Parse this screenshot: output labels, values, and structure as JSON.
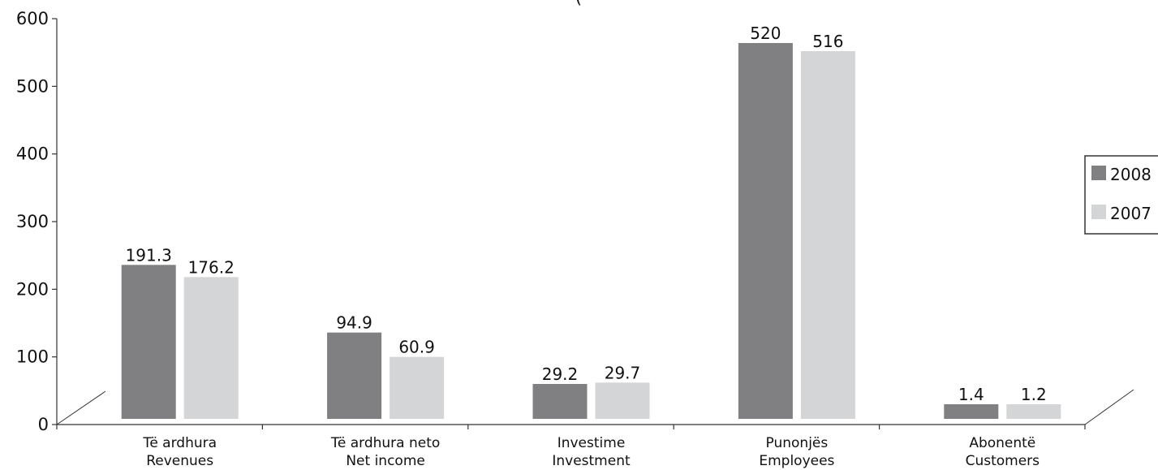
{
  "chart_data": {
    "type": "bar",
    "title_fragment": "(",
    "categories": [
      [
        "Të ardhura",
        "Revenues"
      ],
      [
        "Të ardhura neto",
        "Net income"
      ],
      [
        "Investime",
        "Investment"
      ],
      [
        "Punonjës",
        "Employees"
      ],
      [
        "Abonentë",
        "Customers"
      ]
    ],
    "series": [
      {
        "name": "2008",
        "color": "#808083",
        "values": [
          236,
          136,
          60,
          564,
          30
        ]
      },
      {
        "name": "2007",
        "color": "#d3d5d6",
        "values": [
          218,
          100,
          62,
          552,
          30
        ]
      }
    ],
    "data_labels": [
      [
        "191.3",
        "29.2",
        "94.9",
        "520",
        "1.4"
      ],
      [
        "176.2",
        "29.7",
        "60.9",
        "516",
        "1.2"
      ]
    ],
    "data_labels_order": [
      [
        "191.3",
        "94.9",
        "29.2",
        "520",
        "1.4"
      ],
      [
        "176.2",
        "60.9",
        "29.7",
        "516",
        "1.2"
      ]
    ],
    "yticks": [
      "0",
      "100",
      "200",
      "300",
      "400",
      "500",
      "600"
    ],
    "ylim": [
      0,
      600
    ],
    "legend": {
      "placement": "right",
      "entries": [
        "2008",
        "2007"
      ]
    },
    "grid": false
  }
}
